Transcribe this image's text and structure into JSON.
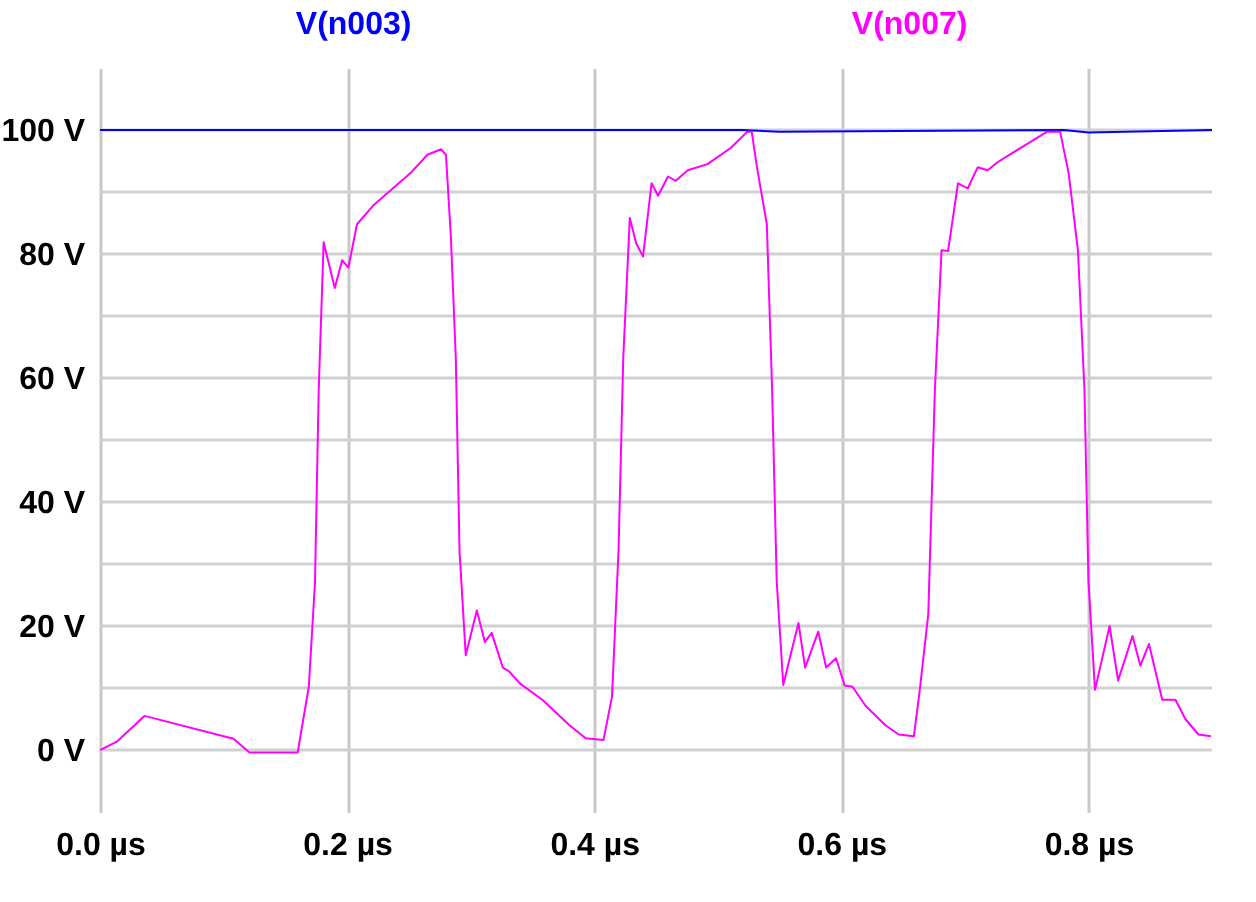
{
  "chart_data": {
    "type": "line",
    "xlim": [
      0,
      0.9
    ],
    "ylim": [
      -10,
      110
    ],
    "xticks": [
      {
        "value": 0,
        "label": "0.0 µs"
      },
      {
        "value": 0.2,
        "label": "0.2 µs"
      },
      {
        "value": 0.4,
        "label": "0.4 µs"
      },
      {
        "value": 0.6,
        "label": "0.6 µs"
      },
      {
        "value": 0.8,
        "label": "0.8 µs"
      }
    ],
    "yticks": [
      {
        "value": 0,
        "label": "0 V"
      },
      {
        "value": 10,
        "label": null
      },
      {
        "value": 20,
        "label": "20 V"
      },
      {
        "value": 30,
        "label": null
      },
      {
        "value": 40,
        "label": "40 V"
      },
      {
        "value": 50,
        "label": null
      },
      {
        "value": 60,
        "label": "60 V"
      },
      {
        "value": 70,
        "label": null
      },
      {
        "value": 80,
        "label": "80 V"
      },
      {
        "value": 90,
        "label": null
      },
      {
        "value": 100,
        "label": "100 V"
      }
    ],
    "grid": true,
    "legend": "top",
    "marker": "none",
    "line_style": "solid",
    "series": [
      {
        "name": "V(n003)",
        "color": "#0000ff",
        "x": [
          0,
          0.25,
          0.52,
          0.55,
          0.78,
          0.8,
          0.9
        ],
        "values": [
          100,
          100,
          100,
          99.7,
          100,
          99.6,
          100
        ]
      },
      {
        "name": "V(n007)",
        "color": "#ff00ff",
        "x": [
          0,
          0.014,
          0.036,
          0.108,
          0.121,
          0.16,
          0.169,
          0.174,
          0.177,
          0.181,
          0.19,
          0.196,
          0.201,
          0.208,
          0.222,
          0.236,
          0.252,
          0.265,
          0.276,
          0.28,
          0.284,
          0.288,
          0.291,
          0.296,
          0.305,
          0.3115,
          0.317,
          0.326,
          0.331,
          0.34,
          0.358,
          0.38,
          0.393,
          0.4075,
          0.4144,
          0.4197,
          0.4235,
          0.4288,
          0.434,
          0.4395,
          0.4464,
          0.4517,
          0.4597,
          0.466,
          0.4757,
          0.4917,
          0.5104,
          0.5237,
          0.5275,
          0.5317,
          0.5397,
          0.544,
          0.5477,
          0.553,
          0.5595,
          0.5653,
          0.5707,
          0.5813,
          0.5877,
          0.5957,
          0.6027,
          0.609,
          0.6197,
          0.6357,
          0.6464,
          0.6587,
          0.6635,
          0.6704,
          0.6757,
          0.6811,
          0.6864,
          0.6944,
          0.7024,
          0.7104,
          0.7184,
          0.7264,
          0.7531,
          0.7664,
          0.7771,
          0.784,
          0.7915,
          0.7968,
          0.8,
          0.8053,
          0.8171,
          0.824,
          0.8357,
          0.842,
          0.849,
          0.8597,
          0.8704,
          0.8784,
          0.889,
          0.8992
        ],
        "values": [
          0,
          1.4,
          5.5,
          1.8,
          -0.4,
          -0.4,
          10.2,
          27,
          58,
          81.9,
          74.5,
          79,
          77.8,
          84.8,
          88,
          90.4,
          93.2,
          96,
          96.9,
          96,
          82.7,
          63,
          32,
          15.3,
          22.5,
          17.4,
          18.9,
          13.3,
          12.7,
          10.7,
          8.1,
          4,
          1.9,
          1.6,
          8.6,
          32.3,
          63.2,
          85.8,
          81.7,
          79.6,
          91.4,
          89.4,
          92.5,
          91.8,
          93.5,
          94.5,
          97.1,
          99.7,
          99.7,
          94,
          84.8,
          58,
          27.2,
          10.5,
          15.8,
          20.5,
          13.3,
          19.1,
          13.3,
          14.8,
          10.4,
          10.2,
          7.1,
          4,
          2.5,
          2.2,
          9.7,
          22,
          58,
          80.6,
          80.5,
          91.4,
          90.6,
          94,
          93.5,
          94.8,
          98.1,
          99.7,
          99.7,
          93,
          80.6,
          58,
          27.2,
          9.7,
          20,
          11.2,
          18.4,
          13.6,
          17.1,
          8.1,
          8.1,
          5,
          2.5,
          2.2
        ]
      }
    ]
  }
}
